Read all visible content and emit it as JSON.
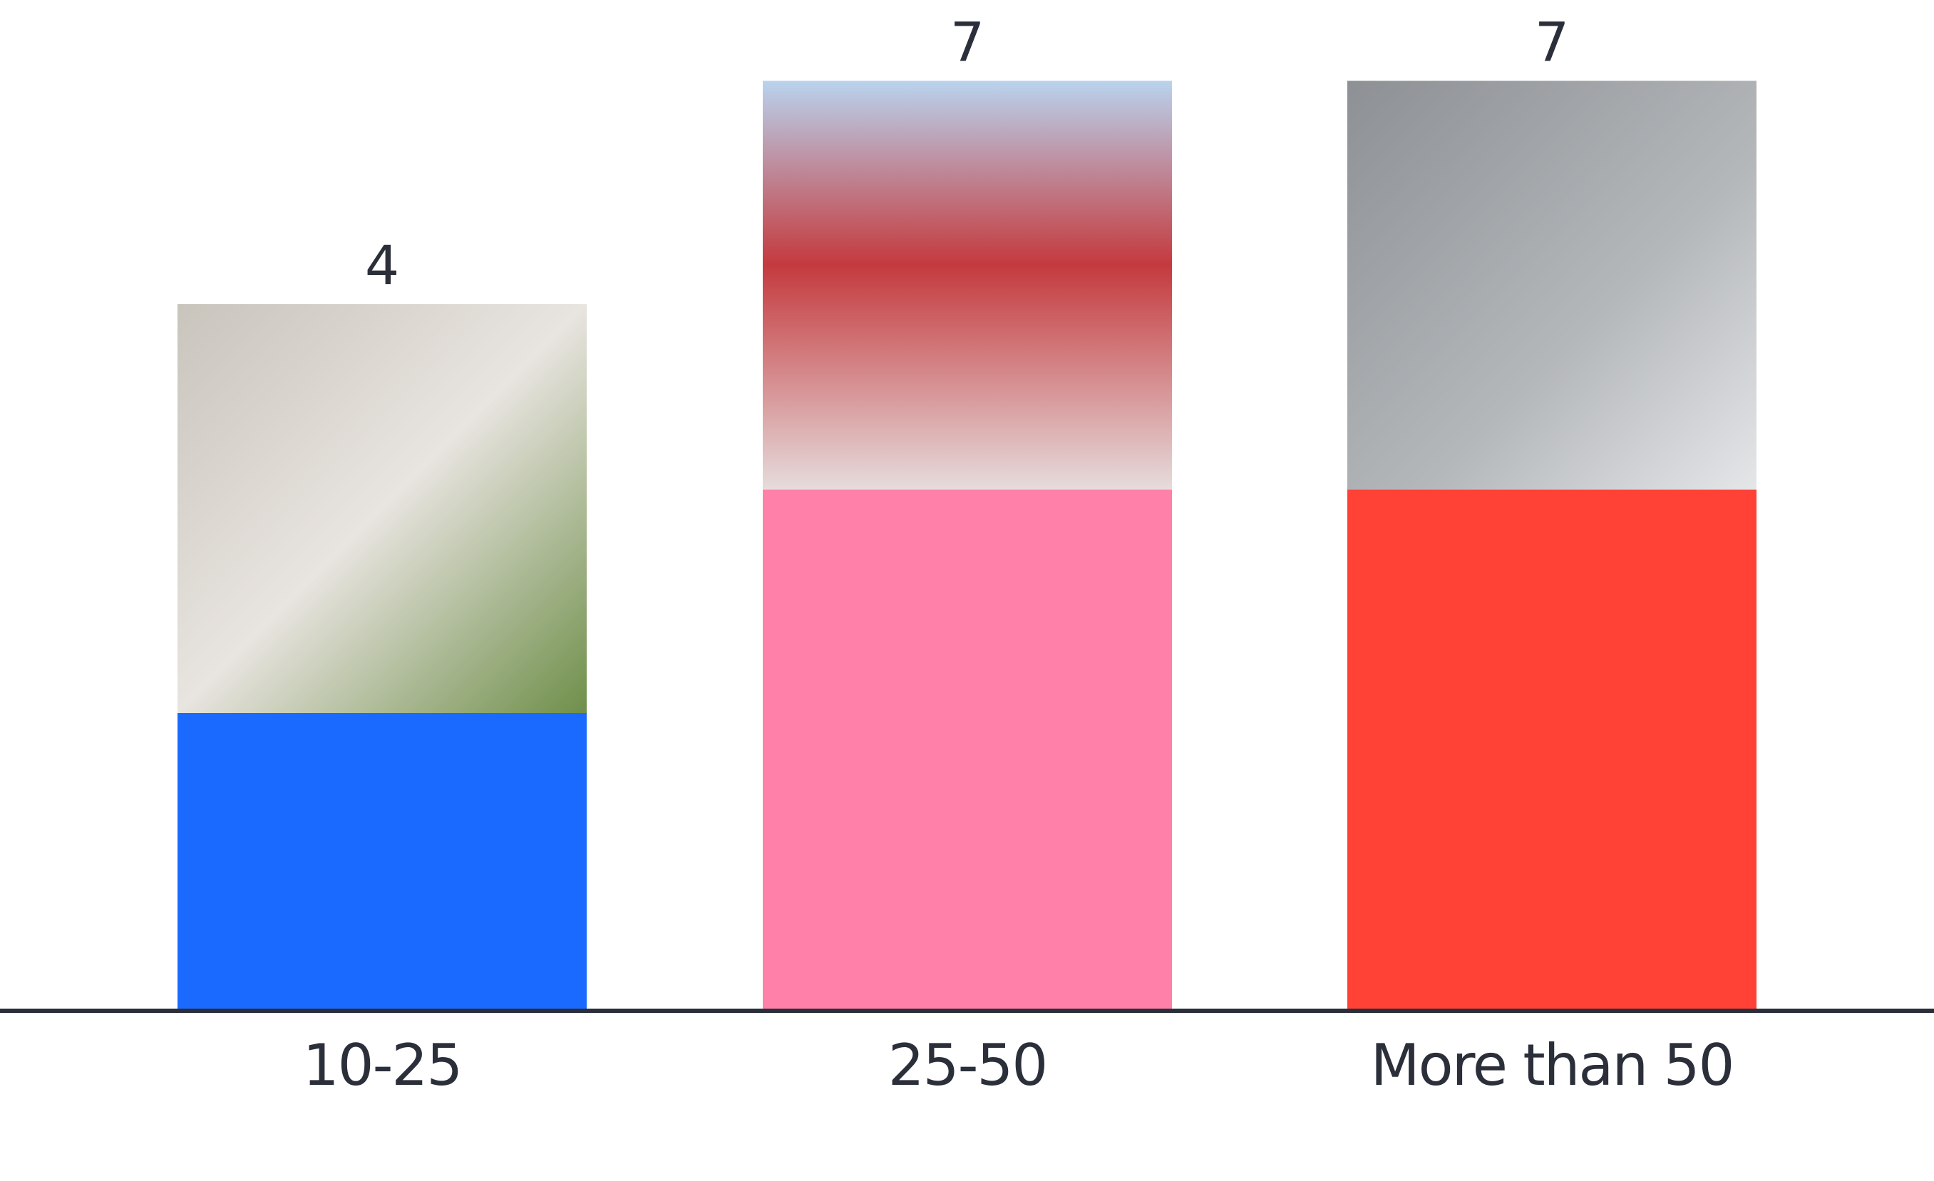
{
  "chart_data": {
    "type": "bar",
    "categories": [
      "10-25",
      "25-50",
      "More than 50"
    ],
    "values": [
      4,
      7,
      7
    ],
    "colors": [
      "#1b6aff",
      "#ff80a8",
      "#ff4136"
    ]
  }
}
